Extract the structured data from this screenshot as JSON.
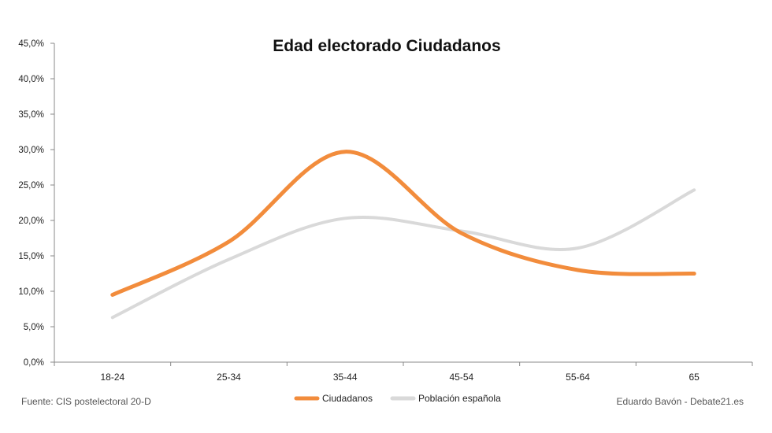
{
  "source_note": "Fuente: CIS postelectoral 20-D",
  "credit_note": "Eduardo Bavón - Debate21.es",
  "chart_data": {
    "type": "line",
    "title": "Edad electorado Ciudadanos",
    "xlabel": "",
    "ylabel": "",
    "categories": [
      "18-24",
      "25-34",
      "35-44",
      "45-54",
      "55-64",
      "65"
    ],
    "ylim": [
      0,
      45
    ],
    "yticks": [
      0,
      5,
      10,
      15,
      20,
      25,
      30,
      35,
      40,
      45
    ],
    "ytick_labels": [
      "0,0%",
      "5,0%",
      "10,0%",
      "15,0%",
      "20,0%",
      "25,0%",
      "30,0%",
      "35,0%",
      "40,0%",
      "45,0%"
    ],
    "grid": false,
    "smooth": true,
    "legend_position": "bottom-center",
    "series": [
      {
        "name": "Ciudadanos",
        "color": "#f28c3c",
        "values": [
          9.5,
          17,
          29.7,
          18.2,
          13,
          12.5
        ]
      },
      {
        "name": "Población española",
        "color": "#d9d9d9",
        "values": [
          6.3,
          14.5,
          20.3,
          18.5,
          16.1,
          24.3
        ]
      }
    ]
  }
}
